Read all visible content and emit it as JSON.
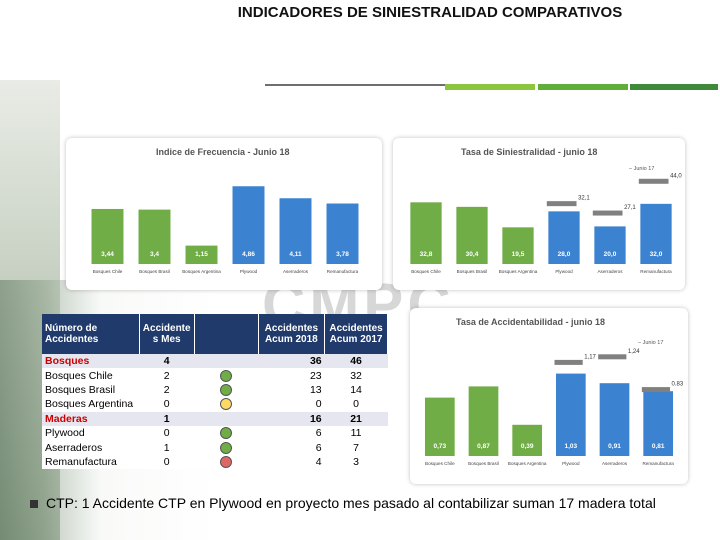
{
  "title": "INDICADORES DE  SINIESTRALIDAD COMPARATIVOS",
  "watermark": "CMPC",
  "chart_data": [
    {
      "type": "bar",
      "title": "Indice de Frecuencia - Junio 18",
      "categories": [
        "Bosques Chile",
        "Bosques Brasil",
        "Bosques Argentina",
        "Plywood",
        "Aserraderos",
        "Remanufactura"
      ],
      "values": [
        3.44,
        3.4,
        1.15,
        4.86,
        4.11,
        3.78
      ],
      "labels": [
        "3,44",
        "3,4",
        "1,15",
        "4,86",
        "4,11",
        "3,78"
      ],
      "colors": [
        "#70ad47",
        "#70ad47",
        "#70ad47",
        "#3b82d0",
        "#3b82d0",
        "#3b82d0"
      ],
      "ylim": [
        0,
        6.5
      ]
    },
    {
      "type": "bar",
      "title": "Tasa de Siniestralidad - junio 18",
      "categories": [
        "Bosques Chile",
        "Bosques Brasil",
        "Bosques Argentina",
        "Plywood",
        "Aserraderos",
        "Remanufactura"
      ],
      "values": [
        32.8,
        30.4,
        19.5,
        28.0,
        20.0,
        32.0
      ],
      "labels": [
        "32,8",
        "30,4",
        "19,5",
        "28,0",
        "20,0",
        "32,0"
      ],
      "colors": [
        "#70ad47",
        "#70ad47",
        "#70ad47",
        "#3b82d0",
        "#3b82d0",
        "#3b82d0"
      ],
      "series_2017": {
        "name": "Junio 17",
        "values": [
          null,
          null,
          null,
          32.1,
          27.1,
          44.0
        ],
        "labels": [
          "",
          "",
          "",
          "32,1",
          "27,1",
          "44,0"
        ]
      },
      "ylim": [
        0,
        50
      ]
    },
    {
      "type": "bar",
      "title": "Tasa de Accidentabilidad - junio 18",
      "categories": [
        "Bosques Chile",
        "Bosques Brasil",
        "Bosques Argentina",
        "Plywood",
        "Aserraderos",
        "Remanufactura"
      ],
      "values": [
        0.73,
        0.87,
        0.39,
        1.03,
        0.91,
        0.81
      ],
      "labels": [
        "0,73",
        "0,87",
        "0,39",
        "1,03",
        "0,91",
        "0,81"
      ],
      "colors": [
        "#70ad47",
        "#70ad47",
        "#70ad47",
        "#3b82d0",
        "#3b82d0",
        "#3b82d0"
      ],
      "series_2017": {
        "name": "Junio 17",
        "values": [
          null,
          null,
          null,
          1.17,
          1.24,
          0.83
        ],
        "labels": [
          "",
          "",
          "",
          "1,17",
          "1,24",
          "0.83"
        ]
      },
      "ylim": [
        0,
        1.45
      ]
    }
  ],
  "table": {
    "headers": [
      "Número de Accidentes",
      "Accidente s Mes",
      "Accidentes Acum 2018",
      "Accidentes Acum 2017"
    ],
    "rows": [
      {
        "label": "Bosques",
        "mes": "4",
        "acum18": "36",
        "acum17": "46",
        "group": true,
        "dot": "none"
      },
      {
        "label": "Bosques Chile",
        "mes": "2",
        "acum18": "23",
        "acum17": "32",
        "group": false,
        "dot": "#70ad47"
      },
      {
        "label": "Bosques Brasil",
        "mes": "2",
        "acum18": "13",
        "acum17": "14",
        "group": false,
        "dot": "#70ad47"
      },
      {
        "label": "Bosques Argentina",
        "mes": "0",
        "acum18": "0",
        "acum17": "0",
        "group": false,
        "dot": "#ffd966"
      },
      {
        "label": "Maderas",
        "mes": "1",
        "acum18": "16",
        "acum17": "21",
        "group": true,
        "dot": "none"
      },
      {
        "label": "Plywood",
        "mes": "0",
        "acum18": "6",
        "acum17": "11",
        "group": false,
        "dot": "#70ad47"
      },
      {
        "label": "Aserraderos",
        "mes": "1",
        "acum18": "6",
        "acum17": "7",
        "group": false,
        "dot": "#70ad47"
      },
      {
        "label": "Remanufactura",
        "mes": "0",
        "acum18": "4",
        "acum17": "3",
        "group": false,
        "dot": "#e06666"
      }
    ]
  },
  "footer": "CTP: 1 Accidente CTP en Plywood en proyecto  mes pasado al contabilizar suman 17 madera total"
}
